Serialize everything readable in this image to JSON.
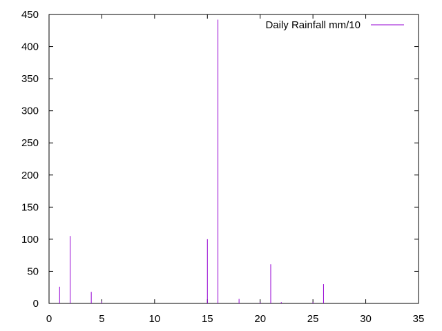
{
  "chart_data": {
    "type": "bar",
    "title": "",
    "xlabel": "",
    "ylabel": "",
    "xlim": [
      0,
      35
    ],
    "ylim": [
      0,
      450
    ],
    "xticks": [
      0,
      5,
      10,
      15,
      20,
      25,
      30,
      35
    ],
    "yticks": [
      0,
      50,
      100,
      150,
      200,
      250,
      300,
      350,
      400,
      450
    ],
    "grid": false,
    "legend_position": "top-right",
    "series": [
      {
        "name": "Daily Rainfall mm/10",
        "color": "#9400d3",
        "style": "impulses",
        "x": [
          1,
          2,
          3,
          4,
          5,
          6,
          7,
          8,
          9,
          10,
          11,
          12,
          13,
          14,
          15,
          16,
          17,
          18,
          19,
          20,
          21,
          22,
          23,
          24,
          25,
          26,
          27,
          28,
          29,
          30,
          31
        ],
        "y": [
          26,
          105,
          0,
          18,
          3,
          0,
          0,
          0,
          0,
          0,
          0,
          0,
          0,
          0,
          100,
          442,
          0,
          7,
          0,
          2,
          61,
          2,
          0,
          0,
          2,
          30,
          0,
          0,
          0,
          0,
          0
        ]
      }
    ]
  }
}
